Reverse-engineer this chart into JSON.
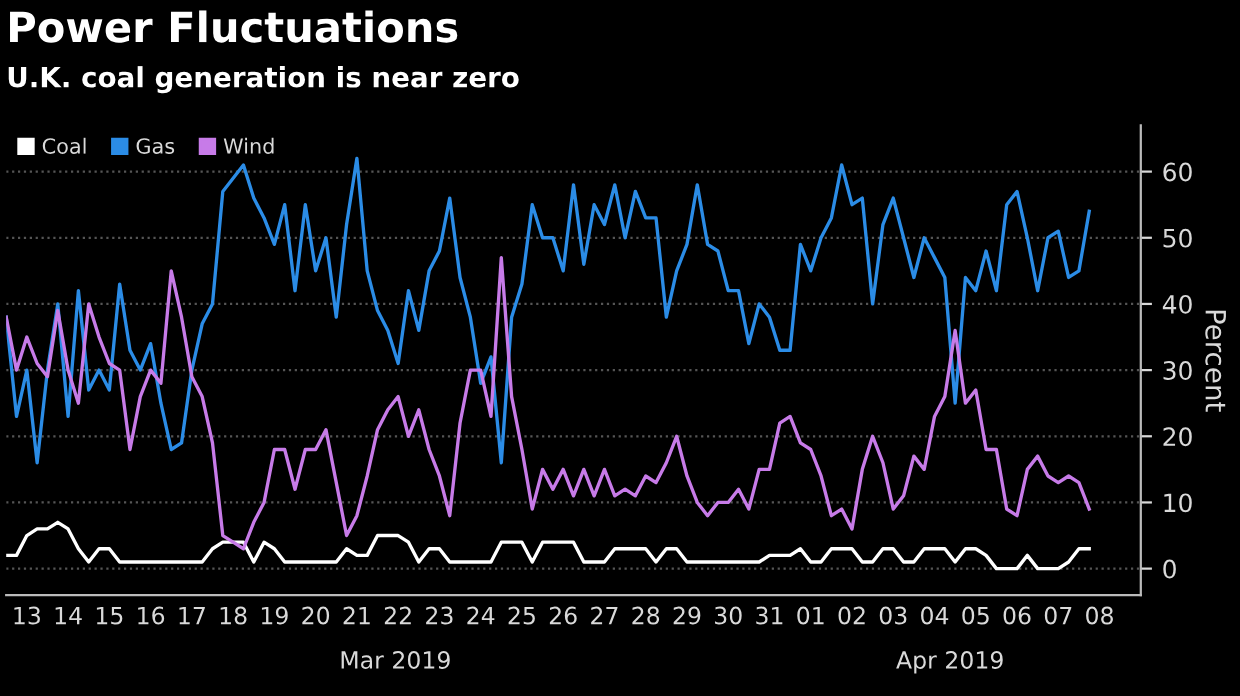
{
  "chart_data": {
    "type": "line",
    "title": "Power Fluctuations",
    "subtitle": "U.K. coal generation is near zero",
    "ylabel": "Percent",
    "x": [
      "2019-03-13T00:00",
      "2019-03-13T06:00",
      "2019-03-13T12:00",
      "2019-03-13T18:00",
      "2019-03-14T00:00",
      "2019-03-14T06:00",
      "2019-03-14T12:00",
      "2019-03-14T18:00",
      "2019-03-15T00:00",
      "2019-03-15T06:00",
      "2019-03-15T12:00",
      "2019-03-15T18:00",
      "2019-03-16T00:00",
      "2019-03-16T06:00",
      "2019-03-16T12:00",
      "2019-03-16T18:00",
      "2019-03-17T00:00",
      "2019-03-17T06:00",
      "2019-03-17T12:00",
      "2019-03-17T18:00",
      "2019-03-18T00:00",
      "2019-03-18T06:00",
      "2019-03-18T12:00",
      "2019-03-18T18:00",
      "2019-03-19T00:00",
      "2019-03-19T06:00",
      "2019-03-19T12:00",
      "2019-03-19T18:00",
      "2019-03-20T00:00",
      "2019-03-20T06:00",
      "2019-03-20T12:00",
      "2019-03-20T18:00",
      "2019-03-21T00:00",
      "2019-03-21T06:00",
      "2019-03-21T12:00",
      "2019-03-21T18:00",
      "2019-03-22T00:00",
      "2019-03-22T06:00",
      "2019-03-22T12:00",
      "2019-03-22T18:00",
      "2019-03-23T00:00",
      "2019-03-23T06:00",
      "2019-03-23T12:00",
      "2019-03-23T18:00",
      "2019-03-24T00:00",
      "2019-03-24T06:00",
      "2019-03-24T12:00",
      "2019-03-24T18:00",
      "2019-03-25T00:00",
      "2019-03-25T06:00",
      "2019-03-25T12:00",
      "2019-03-25T18:00",
      "2019-03-26T00:00",
      "2019-03-26T06:00",
      "2019-03-26T12:00",
      "2019-03-26T18:00",
      "2019-03-27T00:00",
      "2019-03-27T06:00",
      "2019-03-27T12:00",
      "2019-03-27T18:00",
      "2019-03-28T00:00",
      "2019-03-28T06:00",
      "2019-03-28T12:00",
      "2019-03-28T18:00",
      "2019-03-29T00:00",
      "2019-03-29T06:00",
      "2019-03-29T12:00",
      "2019-03-29T18:00",
      "2019-03-30T00:00",
      "2019-03-30T06:00",
      "2019-03-30T12:00",
      "2019-03-30T18:00",
      "2019-03-31T00:00",
      "2019-03-31T06:00",
      "2019-03-31T12:00",
      "2019-03-31T18:00",
      "2019-04-01T00:00",
      "2019-04-01T06:00",
      "2019-04-01T12:00",
      "2019-04-01T18:00",
      "2019-04-02T00:00",
      "2019-04-02T06:00",
      "2019-04-02T12:00",
      "2019-04-02T18:00",
      "2019-04-03T00:00",
      "2019-04-03T06:00",
      "2019-04-03T12:00",
      "2019-04-03T18:00",
      "2019-04-04T00:00",
      "2019-04-04T06:00",
      "2019-04-04T12:00",
      "2019-04-04T18:00",
      "2019-04-05T00:00",
      "2019-04-05T06:00",
      "2019-04-05T12:00",
      "2019-04-05T18:00",
      "2019-04-06T00:00",
      "2019-04-06T06:00",
      "2019-04-06T12:00",
      "2019-04-06T18:00",
      "2019-04-07T00:00",
      "2019-04-07T06:00",
      "2019-04-07T12:00",
      "2019-04-07T18:00",
      "2019-04-08T00:00",
      "2019-04-08T06:00"
    ],
    "series": [
      {
        "name": "Coal",
        "color": "#ffffff",
        "values": [
          2,
          2,
          5,
          6,
          6,
          7,
          6,
          3,
          1,
          3,
          3,
          1,
          1,
          1,
          1,
          1,
          1,
          1,
          1,
          1,
          3,
          4,
          4,
          4,
          1,
          4,
          3,
          1,
          1,
          1,
          1,
          1,
          1,
          3,
          2,
          2,
          5,
          5,
          5,
          4,
          1,
          3,
          3,
          1,
          1,
          1,
          1,
          1,
          4,
          4,
          4,
          1,
          4,
          4,
          4,
          4,
          1,
          1,
          1,
          3,
          3,
          3,
          3,
          1,
          3,
          3,
          1,
          1,
          1,
          1,
          1,
          1,
          1,
          1,
          2,
          2,
          2,
          3,
          1,
          1,
          3,
          3,
          3,
          1,
          1,
          3,
          3,
          1,
          1,
          3,
          3,
          3,
          1,
          3,
          3,
          2,
          0,
          0,
          0,
          2,
          0,
          0,
          0,
          1,
          3,
          3
        ]
      },
      {
        "name": "Gas",
        "color": "#2b8ce6",
        "values": [
          38,
          23,
          30,
          16,
          30,
          40,
          23,
          42,
          27,
          30,
          27,
          43,
          33,
          30,
          34,
          25,
          18,
          19,
          30,
          37,
          40,
          57,
          59,
          61,
          56,
          53,
          49,
          55,
          42,
          55,
          45,
          50,
          38,
          52,
          62,
          45,
          39,
          36,
          31,
          42,
          36,
          45,
          48,
          56,
          44,
          38,
          28,
          32,
          16,
          38,
          43,
          55,
          50,
          50,
          45,
          58,
          46,
          55,
          52,
          58,
          50,
          57,
          53,
          53,
          38,
          45,
          49,
          58,
          49,
          48,
          42,
          42,
          34,
          40,
          38,
          33,
          33,
          49,
          45,
          50,
          53,
          61,
          55,
          56,
          40,
          52,
          56,
          50,
          44,
          50,
          47,
          44,
          25,
          44,
          42,
          48,
          42,
          55,
          57,
          50,
          42,
          50,
          51,
          44,
          45,
          54
        ]
      },
      {
        "name": "Wind",
        "color": "#c77be8",
        "values": [
          38,
          30,
          35,
          31,
          29,
          39,
          30,
          25,
          40,
          35,
          31,
          30,
          18,
          26,
          30,
          28,
          45,
          38,
          29,
          26,
          19,
          5,
          4,
          3,
          7,
          10,
          18,
          18,
          12,
          18,
          18,
          21,
          13,
          5,
          8,
          14,
          21,
          24,
          26,
          20,
          24,
          18,
          14,
          8,
          22,
          30,
          30,
          23,
          47,
          26,
          18,
          9,
          15,
          12,
          15,
          11,
          15,
          11,
          15,
          11,
          12,
          11,
          14,
          13,
          16,
          20,
          14,
          10,
          8,
          10,
          10,
          12,
          9,
          15,
          15,
          22,
          23,
          19,
          18,
          14,
          8,
          9,
          6,
          15,
          20,
          16,
          9,
          11,
          17,
          15,
          23,
          26,
          36,
          25,
          27,
          18,
          18,
          9,
          8,
          15,
          17,
          14,
          13,
          14,
          13,
          9
        ]
      }
    ],
    "xlim": [
      "2019-03-13T00:00",
      "2019-04-09T12:00"
    ],
    "xticks": [
      {
        "value": "2019-03-13T12:00",
        "label": "13"
      },
      {
        "value": "2019-03-14T12:00",
        "label": "14"
      },
      {
        "value": "2019-03-15T12:00",
        "label": "15"
      },
      {
        "value": "2019-03-16T12:00",
        "label": "16"
      },
      {
        "value": "2019-03-17T12:00",
        "label": "17"
      },
      {
        "value": "2019-03-18T12:00",
        "label": "18"
      },
      {
        "value": "2019-03-19T12:00",
        "label": "19"
      },
      {
        "value": "2019-03-20T12:00",
        "label": "20"
      },
      {
        "value": "2019-03-21T12:00",
        "label": "21"
      },
      {
        "value": "2019-03-22T12:00",
        "label": "22"
      },
      {
        "value": "2019-03-23T12:00",
        "label": "23"
      },
      {
        "value": "2019-03-24T12:00",
        "label": "24"
      },
      {
        "value": "2019-03-25T12:00",
        "label": "25"
      },
      {
        "value": "2019-03-26T12:00",
        "label": "26"
      },
      {
        "value": "2019-03-27T12:00",
        "label": "27"
      },
      {
        "value": "2019-03-28T12:00",
        "label": "28"
      },
      {
        "value": "2019-03-29T12:00",
        "label": "29"
      },
      {
        "value": "2019-03-30T12:00",
        "label": "30"
      },
      {
        "value": "2019-03-31T12:00",
        "label": "31"
      },
      {
        "value": "2019-04-01T12:00",
        "label": "01"
      },
      {
        "value": "2019-04-02T12:00",
        "label": "02"
      },
      {
        "value": "2019-04-03T12:00",
        "label": "03"
      },
      {
        "value": "2019-04-04T12:00",
        "label": "04"
      },
      {
        "value": "2019-04-05T12:00",
        "label": "05"
      },
      {
        "value": "2019-04-06T12:00",
        "label": "06"
      },
      {
        "value": "2019-04-07T12:00",
        "label": "07"
      },
      {
        "value": "2019-04-08T12:00",
        "label": "08"
      }
    ],
    "ylim": [
      -4,
      67
    ],
    "yticks": [
      0,
      10,
      20,
      30,
      40,
      50,
      60
    ],
    "annotations": [
      "Mar 2019",
      "Apr 2019"
    ],
    "grid": "y",
    "legend": "top left",
    "marker": "none",
    "line_style": "solid"
  }
}
